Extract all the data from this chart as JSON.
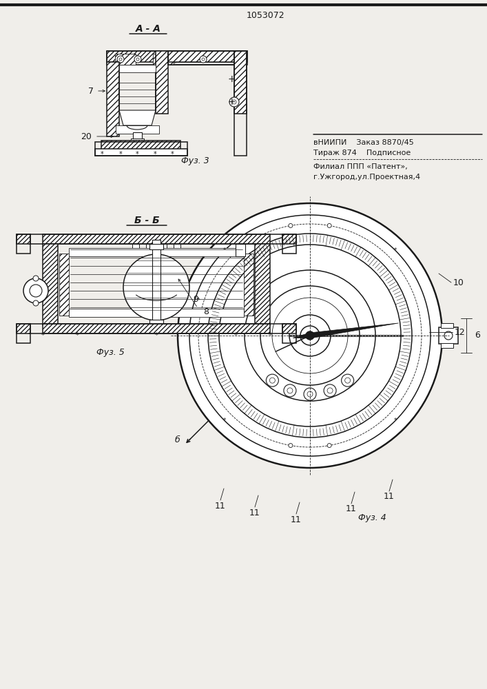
{
  "title": "1053072",
  "fig3_label": "A - A",
  "fig3_caption": "Фуз. 3",
  "fig4_caption": "Фуз. 4",
  "fig5_label": "Б - Б",
  "fig5_caption": "Фуз. 5",
  "label_7": "7",
  "label_20": "20",
  "label_8": "8",
  "label_9": "9",
  "label_10": "10",
  "label_12": "12",
  "label_11": "11",
  "label_b": "б",
  "label_6": "6",
  "publisher_line1": "вНИИПИ    Заказ 8870/45",
  "publisher_line2": "Тираж 874    Подписное",
  "publisher_line3": "Филиал ППП «Патент»,",
  "publisher_line4": "г.Ужгород,ул.Проектная,4",
  "bg_color": "#f0eeea",
  "line_color": "#1a1a1a"
}
